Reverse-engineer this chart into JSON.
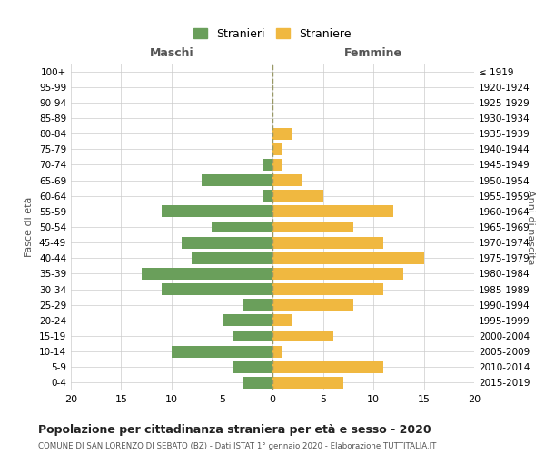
{
  "age_groups": [
    "100+",
    "95-99",
    "90-94",
    "85-89",
    "80-84",
    "75-79",
    "70-74",
    "65-69",
    "60-64",
    "55-59",
    "50-54",
    "45-49",
    "40-44",
    "35-39",
    "30-34",
    "25-29",
    "20-24",
    "15-19",
    "10-14",
    "5-9",
    "0-4"
  ],
  "birth_years": [
    "≤ 1919",
    "1920-1924",
    "1925-1929",
    "1930-1934",
    "1935-1939",
    "1940-1944",
    "1945-1949",
    "1950-1954",
    "1955-1959",
    "1960-1964",
    "1965-1969",
    "1970-1974",
    "1975-1979",
    "1980-1984",
    "1985-1989",
    "1990-1994",
    "1995-1999",
    "2000-2004",
    "2005-2009",
    "2010-2014",
    "2015-2019"
  ],
  "maschi": [
    0,
    0,
    0,
    0,
    0,
    0,
    1,
    7,
    1,
    11,
    6,
    9,
    8,
    13,
    11,
    3,
    5,
    4,
    10,
    4,
    3
  ],
  "femmine": [
    0,
    0,
    0,
    0,
    2,
    1,
    1,
    3,
    5,
    12,
    8,
    11,
    15,
    13,
    11,
    8,
    2,
    6,
    1,
    11,
    7
  ],
  "color_maschi": "#6a9f5b",
  "color_femmine": "#f0b840",
  "title": "Popolazione per cittadinanza straniera per età e sesso - 2020",
  "subtitle": "COMUNE DI SAN LORENZO DI SEBATO (BZ) - Dati ISTAT 1° gennaio 2020 - Elaborazione TUTTITALIA.IT",
  "xlabel_left": "Maschi",
  "xlabel_right": "Femmine",
  "ylabel_left": "Fasce di età",
  "ylabel_right": "Anni di nascita",
  "legend_stranieri": "Stranieri",
  "legend_straniere": "Straniere",
  "xlim": 20,
  "background_color": "#ffffff",
  "grid_color": "#cccccc",
  "dashed_line_color": "#999966"
}
